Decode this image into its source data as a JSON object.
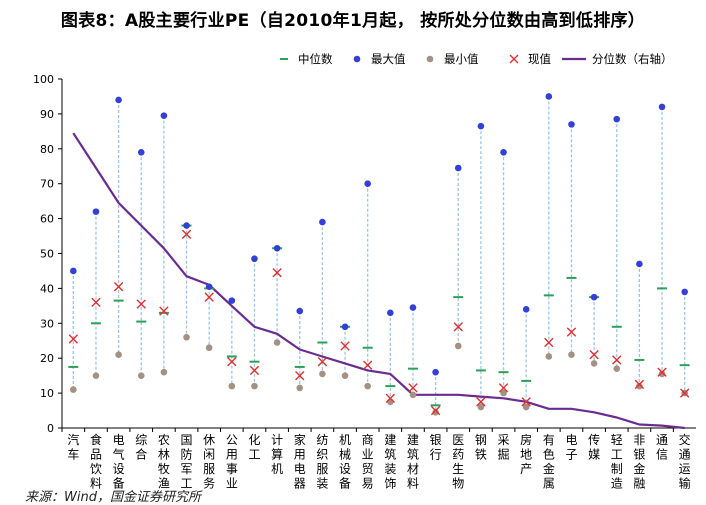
{
  "chart_data": {
    "type": "scatter",
    "title": "图表8：A股主要行业PE（自2010年1月起， 按所处分位数由高到低排序）",
    "source": "来源：Wind，国金证券研究所",
    "ylim": [
      0,
      100
    ],
    "yticks": [
      0,
      10,
      20,
      30,
      40,
      50,
      60,
      70,
      80,
      90,
      100
    ],
    "legend_position": "top-right",
    "legend": {
      "median": "中位数",
      "max": "最大值",
      "min": "最小值",
      "current": "现值",
      "percentile": "分位数（右轴）"
    },
    "colors": {
      "median": "#2aa05a",
      "max": "#3340d6",
      "min": "#a59183",
      "current": "#e03030",
      "percentile": "#6a2c91",
      "range": "#9ec6e2"
    },
    "categories": [
      "汽车",
      "食品饮料",
      "电气设备",
      "综合",
      "农林牧渔",
      "国防军工",
      "休闲服务",
      "公用事业",
      "化工",
      "计算机",
      "家用电器",
      "纺织服装",
      "机械设备",
      "商业贸易",
      "建筑装饰",
      "建筑材料",
      "银行",
      "医药生物",
      "钢铁",
      "采掘",
      "房地产",
      "有色金属",
      "电子",
      "传媒",
      "轻工制造",
      "非银金融",
      "通信",
      "交通运输"
    ],
    "series": [
      {
        "name": "最大值",
        "key": "max",
        "values": [
          45,
          62,
          94,
          79,
          89.5,
          58,
          40.5,
          36.5,
          48.5,
          51.5,
          33.5,
          59,
          29,
          70,
          33,
          34.5,
          16,
          74.5,
          86.5,
          79,
          34,
          95,
          87,
          37.5,
          88.5,
          47,
          92,
          39
        ]
      },
      {
        "name": "最小值",
        "key": "min",
        "values": [
          11,
          15,
          21,
          15,
          16,
          26,
          23,
          12,
          12,
          24.5,
          11.5,
          15.5,
          15,
          12,
          7.5,
          9.5,
          4.5,
          23.5,
          6,
          10,
          6,
          20.5,
          21,
          18.5,
          17,
          12,
          15.5,
          10
        ]
      },
      {
        "name": "中位数",
        "key": "median",
        "values": [
          17.5,
          30,
          36.5,
          30.5,
          33,
          58,
          40,
          20.5,
          19,
          51.5,
          17.5,
          24.5,
          29,
          23,
          12,
          17,
          6.5,
          37.5,
          16.5,
          16,
          13.5,
          38,
          43,
          37.5,
          29,
          19.5,
          40,
          18
        ]
      },
      {
        "name": "现值",
        "key": "current",
        "values": [
          25.5,
          36,
          40.5,
          35.5,
          33.5,
          55.5,
          37.5,
          19,
          16.5,
          44.5,
          15,
          19,
          23.5,
          18,
          8.5,
          11.5,
          5,
          29,
          7.5,
          11.5,
          7.5,
          24.5,
          27.5,
          21,
          19.5,
          12.5,
          16,
          10
        ]
      },
      {
        "name": "分位数（右轴）",
        "key": "percentile",
        "values": [
          84.5,
          74.5,
          64.5,
          58,
          51.5,
          43.5,
          41,
          35,
          29,
          27,
          22.5,
          20.5,
          18.5,
          16.5,
          15.5,
          9.5,
          9.5,
          9.5,
          9,
          8.5,
          7.5,
          5.5,
          5.5,
          4.5,
          3,
          1,
          0.7,
          0
        ]
      }
    ]
  }
}
